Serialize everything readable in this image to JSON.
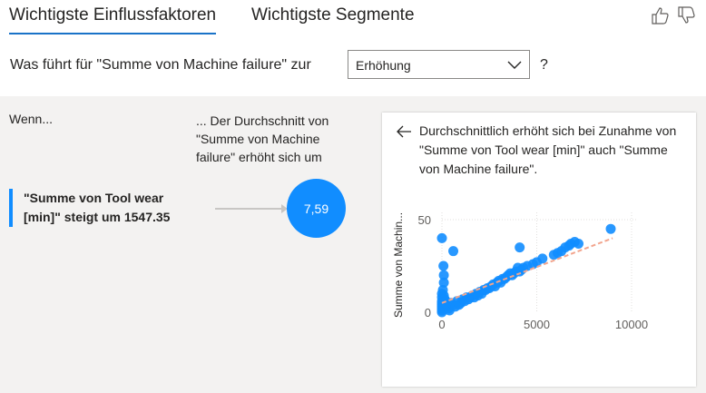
{
  "tabs": {
    "key_influencers": "Wichtigste Einflussfaktoren",
    "top_segments": "Wichtigste Segmente"
  },
  "question": {
    "text": "Was führt für \"Summe von Machine failure\" zur",
    "selected": "Erhöhung",
    "help": "?"
  },
  "influencers": {
    "when_label": "Wenn...",
    "then_label": "... Der Durchschnitt von \"Summe von Machine failure\" erhöht sich um",
    "factor_line1": "\"Summe von Tool wear",
    "factor_line2": "[min]\" steigt um 1547.35",
    "value": "7,59"
  },
  "detail": {
    "text": "Durchschnittlich erhöht sich bei Zunahme von \"Summe von Tool wear [min]\" auch \"Summe von Machine failure\"."
  },
  "colors": {
    "accent": "#118dff",
    "trend": "#f2a58e"
  },
  "chart_data": {
    "type": "scatter",
    "ylabel": "Summe von Machin...",
    "xlabel": "",
    "xlim": [
      0,
      10000
    ],
    "ylim": [
      0,
      50
    ],
    "xticks": [
      "0",
      "5000",
      "10000"
    ],
    "yticks": [
      "0",
      "50"
    ],
    "points": [
      [
        0,
        40
      ],
      [
        80,
        25
      ],
      [
        100,
        20
      ],
      [
        100,
        16
      ],
      [
        600,
        33
      ],
      [
        4100,
        35
      ],
      [
        0,
        10
      ],
      [
        0,
        8
      ],
      [
        0,
        6
      ],
      [
        0,
        5
      ],
      [
        0,
        4
      ],
      [
        0,
        3
      ],
      [
        0,
        2
      ],
      [
        0,
        1
      ],
      [
        0,
        0
      ],
      [
        50,
        12
      ],
      [
        100,
        9
      ],
      [
        150,
        7
      ],
      [
        200,
        6
      ],
      [
        250,
        4
      ],
      [
        300,
        3
      ],
      [
        350,
        2
      ],
      [
        400,
        1
      ],
      [
        500,
        5
      ],
      [
        600,
        4
      ],
      [
        700,
        3
      ],
      [
        800,
        6
      ],
      [
        900,
        4
      ],
      [
        1000,
        5
      ],
      [
        1100,
        7
      ],
      [
        1200,
        6
      ],
      [
        1300,
        8
      ],
      [
        1400,
        7
      ],
      [
        1500,
        8
      ],
      [
        1600,
        9
      ],
      [
        1700,
        8
      ],
      [
        1800,
        10
      ],
      [
        1900,
        9
      ],
      [
        2000,
        11
      ],
      [
        2100,
        10
      ],
      [
        2200,
        12
      ],
      [
        2300,
        12
      ],
      [
        2400,
        13
      ],
      [
        2500,
        13
      ],
      [
        2600,
        14
      ],
      [
        2700,
        15
      ],
      [
        2800,
        14
      ],
      [
        2900,
        16
      ],
      [
        3000,
        17
      ],
      [
        3100,
        16
      ],
      [
        3200,
        18
      ],
      [
        3300,
        18
      ],
      [
        3400,
        19
      ],
      [
        3500,
        20
      ],
      [
        3600,
        21
      ],
      [
        3700,
        20
      ],
      [
        3800,
        21
      ],
      [
        3900,
        22
      ],
      [
        4000,
        24
      ],
      [
        4100,
        22
      ],
      [
        4200,
        23
      ],
      [
        4300,
        24
      ],
      [
        4500,
        25
      ],
      [
        4800,
        26
      ],
      [
        5000,
        27
      ],
      [
        5300,
        29
      ],
      [
        5900,
        31
      ],
      [
        6100,
        32
      ],
      [
        6300,
        33
      ],
      [
        6500,
        35
      ],
      [
        6700,
        36
      ],
      [
        6800,
        37
      ],
      [
        7000,
        38
      ],
      [
        7200,
        37
      ],
      [
        8900,
        45
      ]
    ],
    "trend": [
      [
        0,
        5
      ],
      [
        9000,
        40
      ]
    ]
  }
}
